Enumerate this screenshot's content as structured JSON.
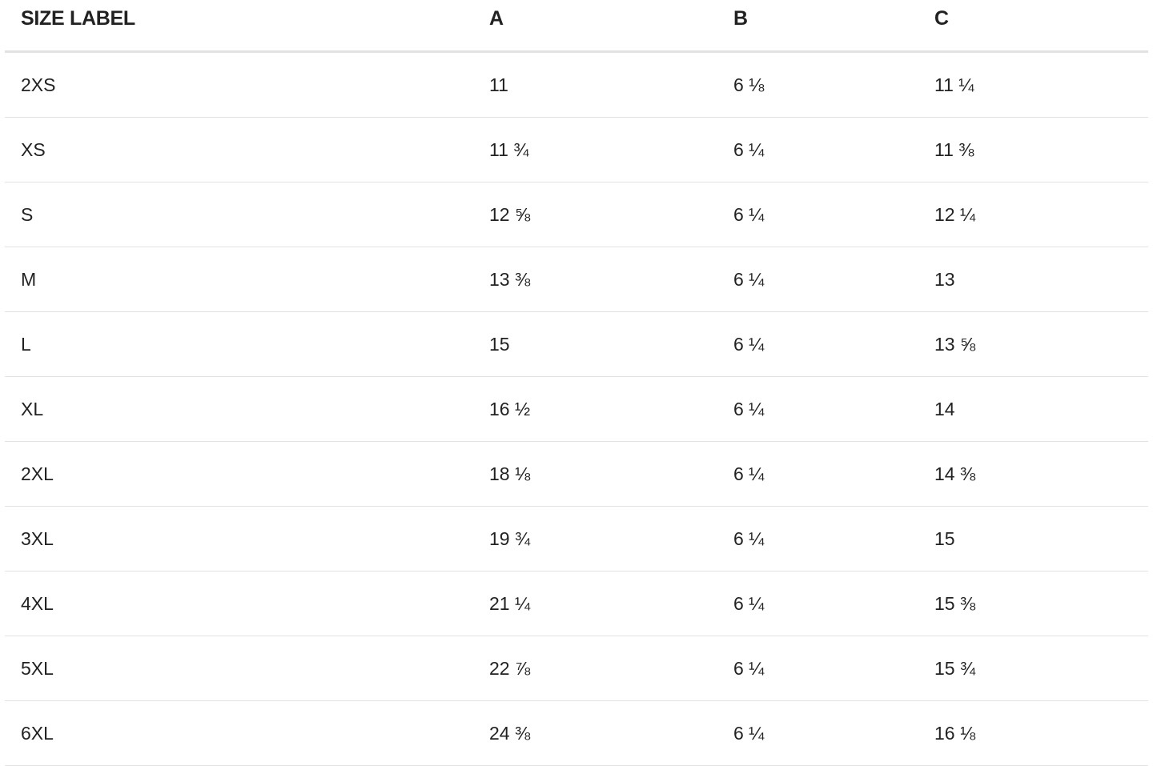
{
  "table": {
    "headers": [
      "SIZE LABEL",
      "A",
      "B",
      "C"
    ],
    "rows": [
      [
        "2XS",
        "11",
        "6 ⅛",
        "11 ¼"
      ],
      [
        "XS",
        "11 ¾",
        "6 ¼",
        "11 ⅜"
      ],
      [
        "S",
        "12 ⅝",
        "6 ¼",
        "12 ¼"
      ],
      [
        "M",
        "13 ⅜",
        "6 ¼",
        "13"
      ],
      [
        "L",
        "15",
        "6 ¼",
        "13 ⅝"
      ],
      [
        "XL",
        "16 ½",
        "6 ¼",
        "14"
      ],
      [
        "2XL",
        "18 ⅛",
        "6 ¼",
        "14 ⅜"
      ],
      [
        "3XL",
        "19 ¾",
        "6 ¼",
        "15"
      ],
      [
        "4XL",
        "21 ¼",
        "6 ¼",
        "15 ⅜"
      ],
      [
        "5XL",
        "22 ⅞",
        "6 ¼",
        "15 ¾"
      ],
      [
        "6XL",
        "24 ⅜",
        "6 ¼",
        "16 ⅛"
      ]
    ]
  }
}
